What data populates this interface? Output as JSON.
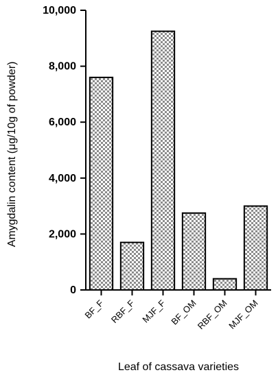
{
  "chart_data": {
    "type": "bar",
    "x_label": "Leaf of cassava varieties",
    "y_label": "Amygdalin content (μg/10g of powder)",
    "categories": [
      "BF_F",
      "RBF_F",
      "MJF_F",
      "BF_OM",
      "RBF_OM",
      "MJF_OM"
    ],
    "values": [
      7600,
      1700,
      9250,
      2750,
      400,
      3000
    ],
    "ylim": [
      0,
      10000
    ],
    "yticks": [
      0,
      {
        "value": 2000,
        "label": "2,000"
      },
      {
        "value": 4000,
        "label": "4,000"
      },
      {
        "value": 6000,
        "label": "6,000"
      },
      {
        "value": 8000,
        "label": "8,000"
      },
      {
        "value": 10000,
        "label": "10,000"
      }
    ]
  }
}
